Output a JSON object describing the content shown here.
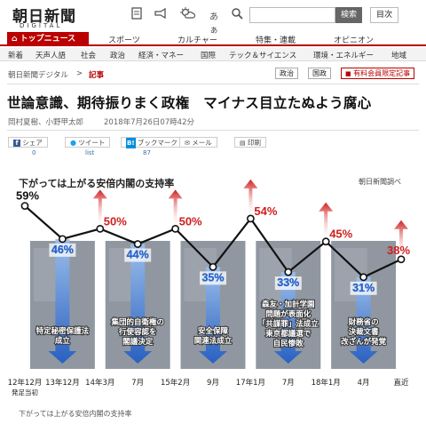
{
  "header": {
    "logo": "朝日新聞",
    "logo_sub": "DIGITAL",
    "font_toggle": "あぁ",
    "search_button": "検索",
    "toc_button": "目次"
  },
  "nav_main": {
    "active": "トップニュース",
    "items": [
      "スポーツ",
      "カルチャー",
      "特集・連載",
      "オピニオン"
    ]
  },
  "nav_sub": {
    "items": [
      "新着",
      "天声人語",
      "社会",
      "政治",
      "経済・マネー",
      "国際",
      "テック＆サイエンス",
      "環境・エネルギー",
      "地域"
    ]
  },
  "breadcrumb": {
    "home": "朝日新聞デジタル",
    "sep": ">",
    "current": "記事"
  },
  "tags": [
    "政治",
    "国政"
  ],
  "paid_tag": "有料会員限定記事",
  "article": {
    "title": "世論意識、期待振りまく政権　マイナス目立たぬよう腐心",
    "authors": "岡村夏樹、小野甲太郎",
    "date": "2018年7月26日07時42分"
  },
  "share": {
    "share_label": "シェア",
    "share_count": "0",
    "tweet_label": "ツイート",
    "tweet_count": "list",
    "bookmark_label": "ブックマーク",
    "bookmark_count": "87",
    "mail_label": "メール",
    "print_label": "印刷"
  },
  "chart_data": {
    "type": "line",
    "title": "下がっては上がる安倍内閣の支持率",
    "source": "朝日新聞調べ",
    "ylabel": "",
    "xlabel": "",
    "categories": [
      "12年12月\n発足当初",
      "13年12月",
      "14年3月",
      "7月",
      "15年2月",
      "9月",
      "17年1月",
      "7月",
      "18年1月",
      "4月",
      "直近"
    ],
    "values": [
      59,
      46,
      50,
      44,
      50,
      35,
      54,
      33,
      45,
      31,
      38
    ],
    "value_labels": [
      "59%",
      "46%",
      "50%",
      "44%",
      "50%",
      "35%",
      "54%",
      "33%",
      "45%",
      "31%",
      "38%"
    ],
    "ylim": [
      25,
      62
    ],
    "colors": {
      "down": "#2a64c8",
      "up": "#d01e1e",
      "line": "#111111"
    },
    "annotations": [
      {
        "at": 1,
        "text": "特定秘密保護法\n成立"
      },
      {
        "at": 3,
        "text": "集団的自衛権の\n行使容認を\n閣議決定"
      },
      {
        "at": 5,
        "text": "安全保障\n関連法成立"
      },
      {
        "at": 7,
        "text": "森友・加計学園\n問題が表面化\n「共謀罪」法成立\n東京都議選で\n自民惨敗"
      },
      {
        "at": 9,
        "text": "財務省の\n決裁文書\n改ざんが発覚"
      }
    ]
  },
  "caption": "下がっては上がる安倍内閣の支持率"
}
